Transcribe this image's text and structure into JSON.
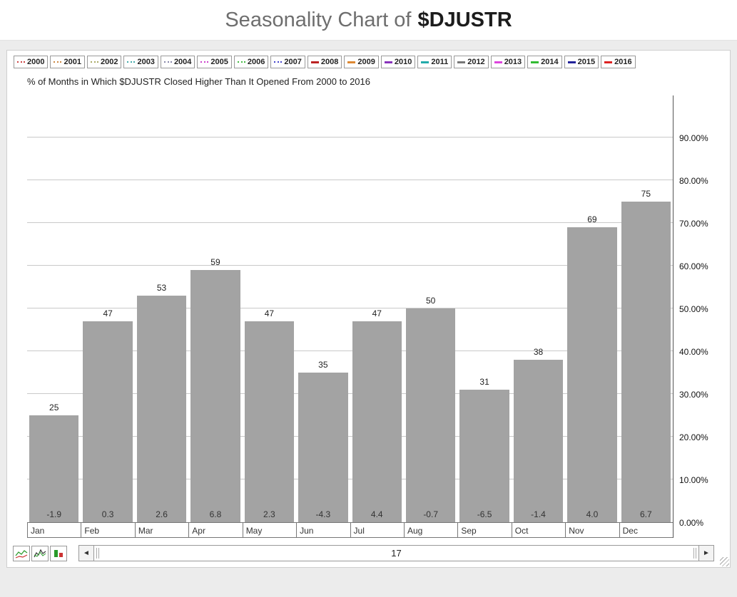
{
  "title": {
    "prefix": "Seasonality Chart of",
    "symbol": "$DJUSTR"
  },
  "subtitle": "% of Months in Which $DJUSTR Closed Higher Than It Opened From 2000 to 2016",
  "legend": {
    "years": [
      {
        "label": "2000",
        "color": "#cc4444",
        "style": "dotted"
      },
      {
        "label": "2001",
        "color": "#cc8844",
        "style": "dotted"
      },
      {
        "label": "2002",
        "color": "#aaaa66",
        "style": "dotted"
      },
      {
        "label": "2003",
        "color": "#44aaaa",
        "style": "dotted"
      },
      {
        "label": "2004",
        "color": "#8888aa",
        "style": "dotted"
      },
      {
        "label": "2005",
        "color": "#cc44cc",
        "style": "dotted"
      },
      {
        "label": "2006",
        "color": "#44bb44",
        "style": "dotted"
      },
      {
        "label": "2007",
        "color": "#4444cc",
        "style": "dotted"
      },
      {
        "label": "2008",
        "color": "#bb2222",
        "style": "solid"
      },
      {
        "label": "2009",
        "color": "#dd8833",
        "style": "solid"
      },
      {
        "label": "2010",
        "color": "#8833bb",
        "style": "solid"
      },
      {
        "label": "2011",
        "color": "#22aaaa",
        "style": "solid"
      },
      {
        "label": "2012",
        "color": "#777777",
        "style": "solid"
      },
      {
        "label": "2013",
        "color": "#dd44dd",
        "style": "solid"
      },
      {
        "label": "2014",
        "color": "#33bb33",
        "style": "solid"
      },
      {
        "label": "2015",
        "color": "#222299",
        "style": "solid"
      },
      {
        "label": "2016",
        "color": "#dd2222",
        "style": "solid"
      }
    ]
  },
  "chart_data": {
    "type": "bar",
    "title": "% of Months in Which $DJUSTR Closed Higher Than It Opened From 2000 to 2016",
    "categories": [
      "Jan",
      "Feb",
      "Mar",
      "Apr",
      "May",
      "Jun",
      "Jul",
      "Aug",
      "Sep",
      "Oct",
      "Nov",
      "Dec"
    ],
    "values": [
      25,
      47,
      53,
      59,
      47,
      35,
      47,
      50,
      31,
      38,
      69,
      75
    ],
    "bottom_labels": [
      "-1.9",
      "0.3",
      "2.6",
      "6.8",
      "2.3",
      "-4.3",
      "4.4",
      "-0.7",
      "-6.5",
      "-1.4",
      "4.0",
      "6.7"
    ],
    "ytick_values": [
      90,
      80,
      70,
      60,
      50,
      40,
      30,
      20,
      10,
      0
    ],
    "ytick_labels": [
      "90.00%",
      "80.00%",
      "70.00%",
      "60.00%",
      "50.00%",
      "40.00%",
      "30.00%",
      "20.00%",
      "10.00%",
      "0.00%"
    ],
    "ylim": [
      0,
      100
    ],
    "xlabel": "",
    "ylabel": "",
    "grid": true,
    "legend_position": "top",
    "bar_color": "#a3a3a3"
  },
  "scrollbar": {
    "value": "17"
  },
  "icons": {
    "left_arrow": "◄",
    "right_arrow": "►"
  }
}
